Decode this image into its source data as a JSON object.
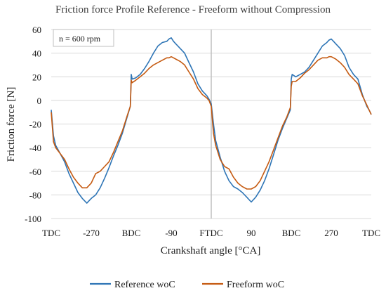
{
  "chart_data": {
    "type": "line",
    "title": "Friction force Profile Reference - Freeform without Compression",
    "xlabel": "Crankshaft angle [°CA]",
    "ylabel": "Friction force  [N]",
    "xlim": [
      -360,
      360
    ],
    "ylim": [
      -100,
      60
    ],
    "yticks": [
      60,
      40,
      20,
      0,
      -20,
      -40,
      -60,
      -80,
      -100
    ],
    "xticks": [
      {
        "x": -360,
        "label": "TDC"
      },
      {
        "x": -270,
        "label": "-270"
      },
      {
        "x": -180,
        "label": "BDC"
      },
      {
        "x": -90,
        "label": "-90"
      },
      {
        "x": 0,
        "label": "FTDC"
      },
      {
        "x": 90,
        "label": "90"
      },
      {
        "x": 180,
        "label": "BDC"
      },
      {
        "x": 270,
        "label": "270"
      },
      {
        "x": 360,
        "label": "TDC"
      }
    ],
    "vertical_marker_x": 0,
    "annotation": "n = 600 rpm",
    "grid": "horizontal",
    "legend_position": "bottom",
    "series": [
      {
        "name": "Reference woC",
        "color": "#2e75b6",
        "x": [
          -360,
          -355,
          -350,
          -340,
          -330,
          -320,
          -310,
          -300,
          -290,
          -280,
          -270,
          -260,
          -250,
          -240,
          -230,
          -220,
          -210,
          -200,
          -190,
          -182,
          -180,
          -178,
          -170,
          -160,
          -150,
          -140,
          -130,
          -120,
          -110,
          -100,
          -95,
          -90,
          -85,
          -80,
          -70,
          -60,
          -50,
          -40,
          -30,
          -20,
          -10,
          -5,
          0,
          5,
          10,
          20,
          30,
          40,
          50,
          60,
          70,
          80,
          90,
          100,
          110,
          120,
          130,
          140,
          150,
          160,
          170,
          178,
          180,
          182,
          190,
          200,
          210,
          220,
          230,
          240,
          250,
          260,
          265,
          270,
          275,
          280,
          290,
          300,
          310,
          320,
          330,
          340,
          350,
          355,
          360
        ],
        "y": [
          -8,
          -30,
          -38,
          -45,
          -52,
          -62,
          -70,
          -78,
          -83,
          -87,
          -83,
          -80,
          -74,
          -66,
          -57,
          -47,
          -38,
          -28,
          -15,
          -5,
          22,
          18,
          19,
          22,
          27,
          33,
          40,
          46,
          49,
          50,
          52,
          53,
          50,
          48,
          44,
          40,
          32,
          24,
          14,
          8,
          4,
          1,
          -3,
          -20,
          -34,
          -48,
          -60,
          -68,
          -73,
          -75,
          -78,
          -82,
          -86,
          -82,
          -76,
          -68,
          -58,
          -46,
          -34,
          -24,
          -15,
          -8,
          18,
          22,
          20,
          22,
          24,
          28,
          34,
          40,
          46,
          49,
          51,
          52,
          50,
          48,
          44,
          38,
          28,
          22,
          18,
          5,
          -5,
          -8,
          -12
        ]
      },
      {
        "name": "Freeform woC",
        "color": "#c55a11",
        "x": [
          -360,
          -355,
          -350,
          -340,
          -330,
          -320,
          -310,
          -300,
          -290,
          -280,
          -270,
          -260,
          -250,
          -240,
          -230,
          -220,
          -210,
          -200,
          -190,
          -182,
          -180,
          -178,
          -170,
          -160,
          -150,
          -140,
          -130,
          -120,
          -110,
          -100,
          -95,
          -90,
          -85,
          -80,
          -70,
          -60,
          -50,
          -40,
          -30,
          -20,
          -10,
          -5,
          0,
          5,
          10,
          20,
          30,
          40,
          50,
          60,
          70,
          80,
          90,
          100,
          110,
          120,
          130,
          140,
          150,
          160,
          170,
          178,
          180,
          182,
          190,
          200,
          210,
          220,
          230,
          240,
          250,
          260,
          265,
          270,
          275,
          280,
          290,
          300,
          310,
          320,
          330,
          340,
          350,
          355,
          360
        ],
        "y": [
          -10,
          -35,
          -40,
          -45,
          -50,
          -58,
          -65,
          -70,
          -74,
          -74,
          -70,
          -62,
          -60,
          -56,
          -52,
          -44,
          -35,
          -26,
          -14,
          -5,
          17,
          15,
          17,
          20,
          23,
          27,
          30,
          32,
          34,
          36,
          36,
          37,
          36,
          35,
          33,
          30,
          24,
          18,
          10,
          5,
          2,
          0,
          -5,
          -28,
          -38,
          -50,
          -56,
          -58,
          -65,
          -70,
          -73,
          -75,
          -75,
          -73,
          -68,
          -60,
          -52,
          -42,
          -32,
          -22,
          -14,
          -6,
          12,
          16,
          16,
          19,
          23,
          26,
          30,
          34,
          36,
          36,
          37,
          37,
          36,
          35,
          32,
          28,
          22,
          18,
          14,
          4,
          -4,
          -8,
          -12
        ]
      }
    ]
  }
}
